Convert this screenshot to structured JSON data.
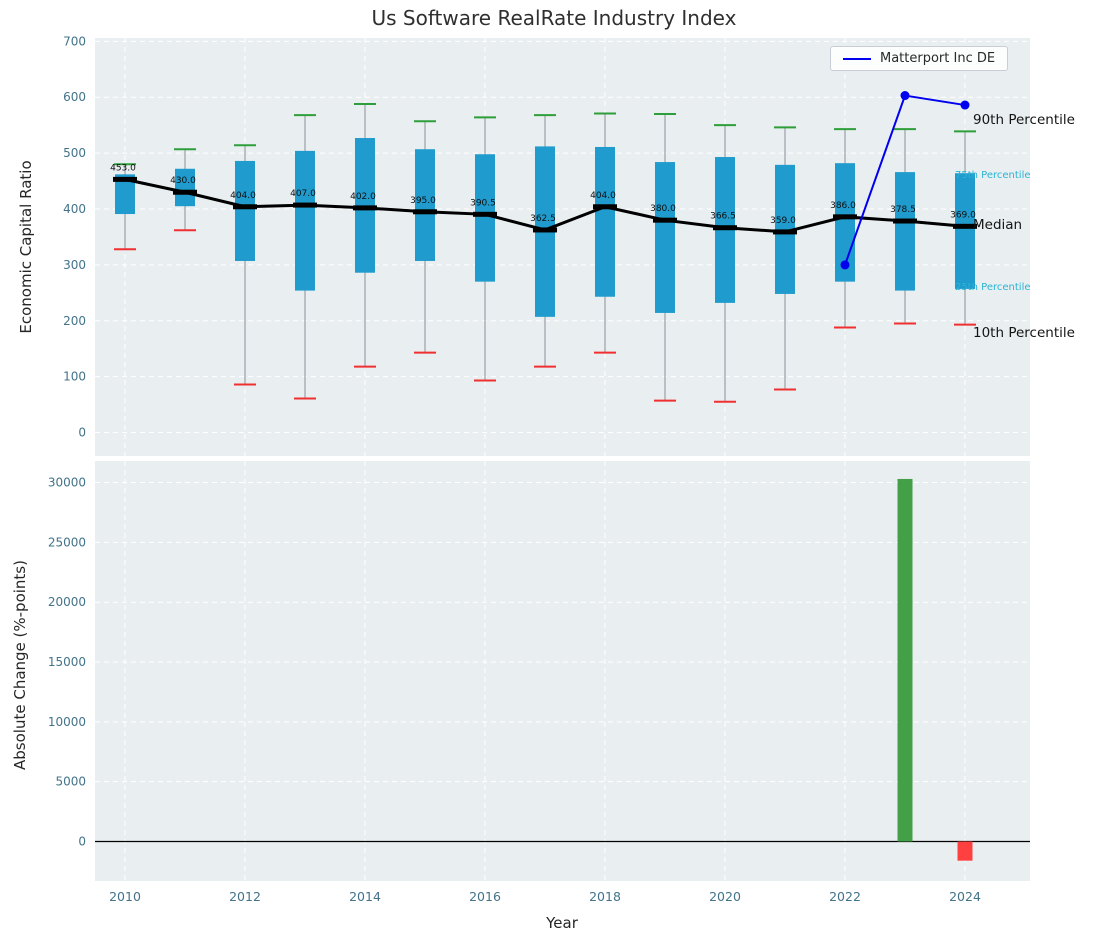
{
  "title": "Us Software RealRate Industry Index",
  "top_panel": {
    "ylabel": "Economic Capital Ratio",
    "yticks": [
      0,
      100,
      200,
      300,
      400,
      500,
      600,
      700
    ],
    "legend_label": "Matterport Inc DE",
    "annotations": [
      {
        "text": "90th Percentile"
      },
      {
        "text": "75th Percentile"
      },
      {
        "text": "Median"
      },
      {
        "text": "25th Percentile"
      },
      {
        "text": "10th Percentile"
      }
    ]
  },
  "bottom_panel": {
    "ylabel": "Absolute Change (%-points)",
    "xlabel": "Year",
    "yticks": [
      0,
      5000,
      10000,
      15000,
      20000,
      25000,
      30000
    ]
  },
  "x_axis": {
    "tick_years": [
      2010,
      2012,
      2014,
      2016,
      2018,
      2020,
      2022,
      2024
    ]
  },
  "colors": {
    "box": "#1f9bcd",
    "whisker": "#9aa0a6",
    "cap_high": "#2e9e3a",
    "cap_low": "#f03030",
    "median": "#000000",
    "company_line": "#0000ee",
    "bar_positive": "#43a047",
    "bar_negative": "#ff4040",
    "panel_bg": "#e9eef1",
    "grid": "#ffffff",
    "tick_label": "#43738a",
    "annotation_cyan": "#29b4d4"
  },
  "chart_data": [
    {
      "type": "boxplot",
      "title": "Us Software RealRate Industry Index",
      "xlabel": "Year",
      "ylabel": "Economic Capital Ratio",
      "ylim": [
        0,
        700
      ],
      "years": [
        2010,
        2011,
        2012,
        2013,
        2014,
        2015,
        2016,
        2017,
        2018,
        2019,
        2020,
        2021,
        2022,
        2023,
        2024
      ],
      "p90": [
        480,
        507,
        514,
        568,
        588,
        557,
        564,
        568,
        571,
        570,
        550,
        546,
        543,
        543,
        539
      ],
      "p75": [
        462,
        472,
        486,
        504,
        527,
        507,
        498,
        512,
        511,
        484,
        493,
        479,
        482,
        466,
        464
      ],
      "median": [
        453,
        430,
        404,
        407,
        402,
        395,
        390.5,
        362.5,
        404,
        380,
        366.5,
        359,
        386,
        378.5,
        369
      ],
      "median_labels": [
        "453.0",
        "430.0",
        "404.0",
        "407.0",
        "402.0",
        "395.0",
        "390.5",
        "362.5",
        "404.0",
        "380.0",
        "366.5",
        "359.0",
        "386.0",
        "378.5",
        "369.0"
      ],
      "p25": [
        391,
        405,
        307,
        254,
        286,
        307,
        270,
        207,
        243,
        214,
        232,
        248,
        270,
        254,
        257
      ],
      "p10": [
        328,
        362,
        86,
        61,
        118,
        143,
        93,
        118,
        143,
        57,
        55,
        77,
        188,
        195,
        193
      ],
      "company": {
        "name": "Matterport Inc DE",
        "x": [
          2022,
          2023,
          2024
        ],
        "y": [
          300,
          603,
          586
        ]
      }
    },
    {
      "type": "bar",
      "ylabel": "Absolute Change (%-points)",
      "xlabel": "Year",
      "ylim": [
        -3300,
        31800
      ],
      "x": [
        2023,
        2024
      ],
      "values": [
        30300,
        -1600
      ],
      "colors": [
        "#43a047",
        "#ff4040"
      ]
    }
  ]
}
